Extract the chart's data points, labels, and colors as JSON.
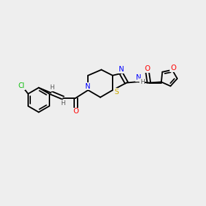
{
  "background_color": "#eeeeee",
  "bond_color": "#000000",
  "atom_colors": {
    "N": "#0000ff",
    "O": "#ff0000",
    "S": "#ccaa00",
    "Cl": "#00bb00",
    "H": "#555555",
    "C": "#000000"
  },
  "figsize": [
    3.0,
    3.0
  ],
  "dpi": 100,
  "scale": 10
}
